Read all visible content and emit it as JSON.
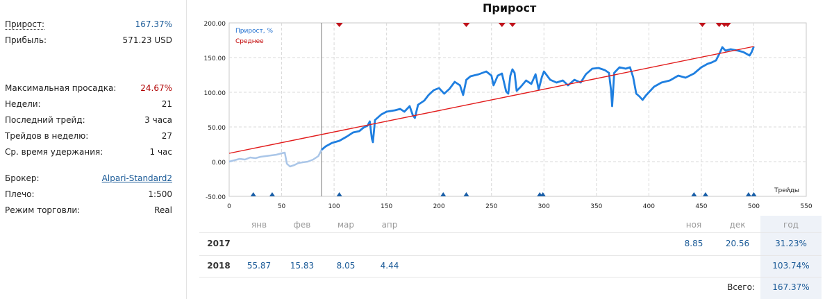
{
  "stats": {
    "growth_label": "Прирост:",
    "growth_value": "167.37%",
    "profit_label": "Прибыль:",
    "profit_value": "571.23 USD",
    "drawdown_label": "Максимальная просадка:",
    "drawdown_value": "24.67%",
    "weeks_label": "Недели:",
    "weeks_value": "21",
    "last_trade_label": "Последний трейд:",
    "last_trade_value": "3 часа",
    "trades_per_week_label": "Трейдов в неделю:",
    "trades_per_week_value": "27",
    "hold_label": "Ср. время удержания:",
    "hold_value": "1 час",
    "broker_label": "Брокер:",
    "broker_value": "Alpari-Standard2",
    "leverage_label": "Плечо:",
    "leverage_value": "1:500",
    "mode_label": "Режим торговли:",
    "mode_value": "Real"
  },
  "chart_data": {
    "type": "line",
    "title": "Прирост",
    "xlabel": "Трейды",
    "ylabel": "",
    "xlim": [
      0,
      550
    ],
    "ylim": [
      -50,
      200
    ],
    "x_ticks": [
      0,
      50,
      100,
      150,
      200,
      250,
      300,
      350,
      400,
      450,
      500,
      550
    ],
    "y_ticks": [
      -50,
      0,
      50,
      100,
      150,
      200
    ],
    "y_tick_labels": [
      "-50.00",
      "0.00",
      "50.00",
      "100.00",
      "150.00",
      "200.00"
    ],
    "grid": true,
    "legend": "top-left",
    "vertical_marker_x": 88,
    "series": [
      {
        "name": "Прирост, %",
        "color": "#1f7fe0",
        "faded_color": "#aac6e8",
        "faded_until_x": 88,
        "points": [
          [
            0,
            0
          ],
          [
            5,
            2
          ],
          [
            10,
            4
          ],
          [
            15,
            3
          ],
          [
            20,
            6
          ],
          [
            25,
            5
          ],
          [
            30,
            7
          ],
          [
            35,
            8
          ],
          [
            40,
            9
          ],
          [
            45,
            10
          ],
          [
            50,
            12
          ],
          [
            53,
            13
          ],
          [
            55,
            -3
          ],
          [
            58,
            -7
          ],
          [
            62,
            -5
          ],
          [
            66,
            -2
          ],
          [
            70,
            -1
          ],
          [
            75,
            0
          ],
          [
            80,
            3
          ],
          [
            85,
            8
          ],
          [
            88,
            17
          ],
          [
            92,
            22
          ],
          [
            98,
            27
          ],
          [
            105,
            30
          ],
          [
            112,
            36
          ],
          [
            118,
            42
          ],
          [
            124,
            44
          ],
          [
            128,
            49
          ],
          [
            132,
            52
          ],
          [
            134,
            58
          ],
          [
            136,
            33
          ],
          [
            137,
            28
          ],
          [
            139,
            60
          ],
          [
            145,
            68
          ],
          [
            150,
            72
          ],
          [
            158,
            74
          ],
          [
            163,
            76
          ],
          [
            167,
            72
          ],
          [
            172,
            80
          ],
          [
            175,
            67
          ],
          [
            177,
            63
          ],
          [
            180,
            82
          ],
          [
            186,
            88
          ],
          [
            190,
            96
          ],
          [
            195,
            103
          ],
          [
            200,
            106
          ],
          [
            205,
            98
          ],
          [
            210,
            105
          ],
          [
            215,
            115
          ],
          [
            220,
            110
          ],
          [
            223,
            96
          ],
          [
            226,
            118
          ],
          [
            230,
            123
          ],
          [
            238,
            126
          ],
          [
            245,
            130
          ],
          [
            250,
            124
          ],
          [
            252,
            110
          ],
          [
            256,
            124
          ],
          [
            260,
            127
          ],
          [
            264,
            101
          ],
          [
            266,
            98
          ],
          [
            268,
            124
          ],
          [
            270,
            133
          ],
          [
            272,
            128
          ],
          [
            274,
            102
          ],
          [
            278,
            108
          ],
          [
            283,
            117
          ],
          [
            288,
            112
          ],
          [
            292,
            126
          ],
          [
            295,
            104
          ],
          [
            298,
            122
          ],
          [
            300,
            130
          ],
          [
            306,
            118
          ],
          [
            312,
            114
          ],
          [
            318,
            117
          ],
          [
            323,
            110
          ],
          [
            329,
            118
          ],
          [
            335,
            114
          ],
          [
            340,
            126
          ],
          [
            346,
            134
          ],
          [
            352,
            135
          ],
          [
            358,
            132
          ],
          [
            362,
            128
          ],
          [
            364,
            102
          ],
          [
            365,
            80
          ],
          [
            367,
            128
          ],
          [
            372,
            136
          ],
          [
            378,
            134
          ],
          [
            382,
            136
          ],
          [
            385,
            122
          ],
          [
            388,
            98
          ],
          [
            391,
            94
          ],
          [
            394,
            89
          ],
          [
            397,
            95
          ],
          [
            400,
            100
          ],
          [
            405,
            108
          ],
          [
            412,
            114
          ],
          [
            420,
            117
          ],
          [
            428,
            124
          ],
          [
            435,
            121
          ],
          [
            443,
            127
          ],
          [
            450,
            136
          ],
          [
            456,
            141
          ],
          [
            460,
            143
          ],
          [
            464,
            146
          ],
          [
            468,
            158
          ],
          [
            470,
            165
          ],
          [
            473,
            160
          ],
          [
            478,
            162
          ],
          [
            485,
            160
          ],
          [
            490,
            158
          ],
          [
            496,
            153
          ],
          [
            498,
            158
          ],
          [
            500,
            166
          ]
        ]
      },
      {
        "name": "Среднее",
        "color": "#e21c1c",
        "points": [
          [
            0,
            12
          ],
          [
            500,
            166
          ]
        ]
      }
    ],
    "markers_top_x": [
      105,
      226,
      260,
      270,
      451,
      467,
      472,
      475
    ],
    "markers_bottom_x": [
      23,
      41,
      105,
      204,
      226,
      296,
      299,
      443,
      454,
      495,
      500
    ]
  },
  "monthly": {
    "months": [
      "янв",
      "фев",
      "мар",
      "апр",
      "ноя",
      "дек"
    ],
    "year_header": "год",
    "rows": [
      {
        "year": "2017",
        "vals": [
          "",
          "",
          "",
          "",
          "8.85",
          "20.56"
        ],
        "total": "31.23%"
      },
      {
        "year": "2018",
        "vals": [
          "55.87",
          "15.83",
          "8.05",
          "4.44",
          "",
          ""
        ],
        "total": "103.74%"
      }
    ],
    "total_label": "Всего:",
    "total_value": "167.37%"
  }
}
